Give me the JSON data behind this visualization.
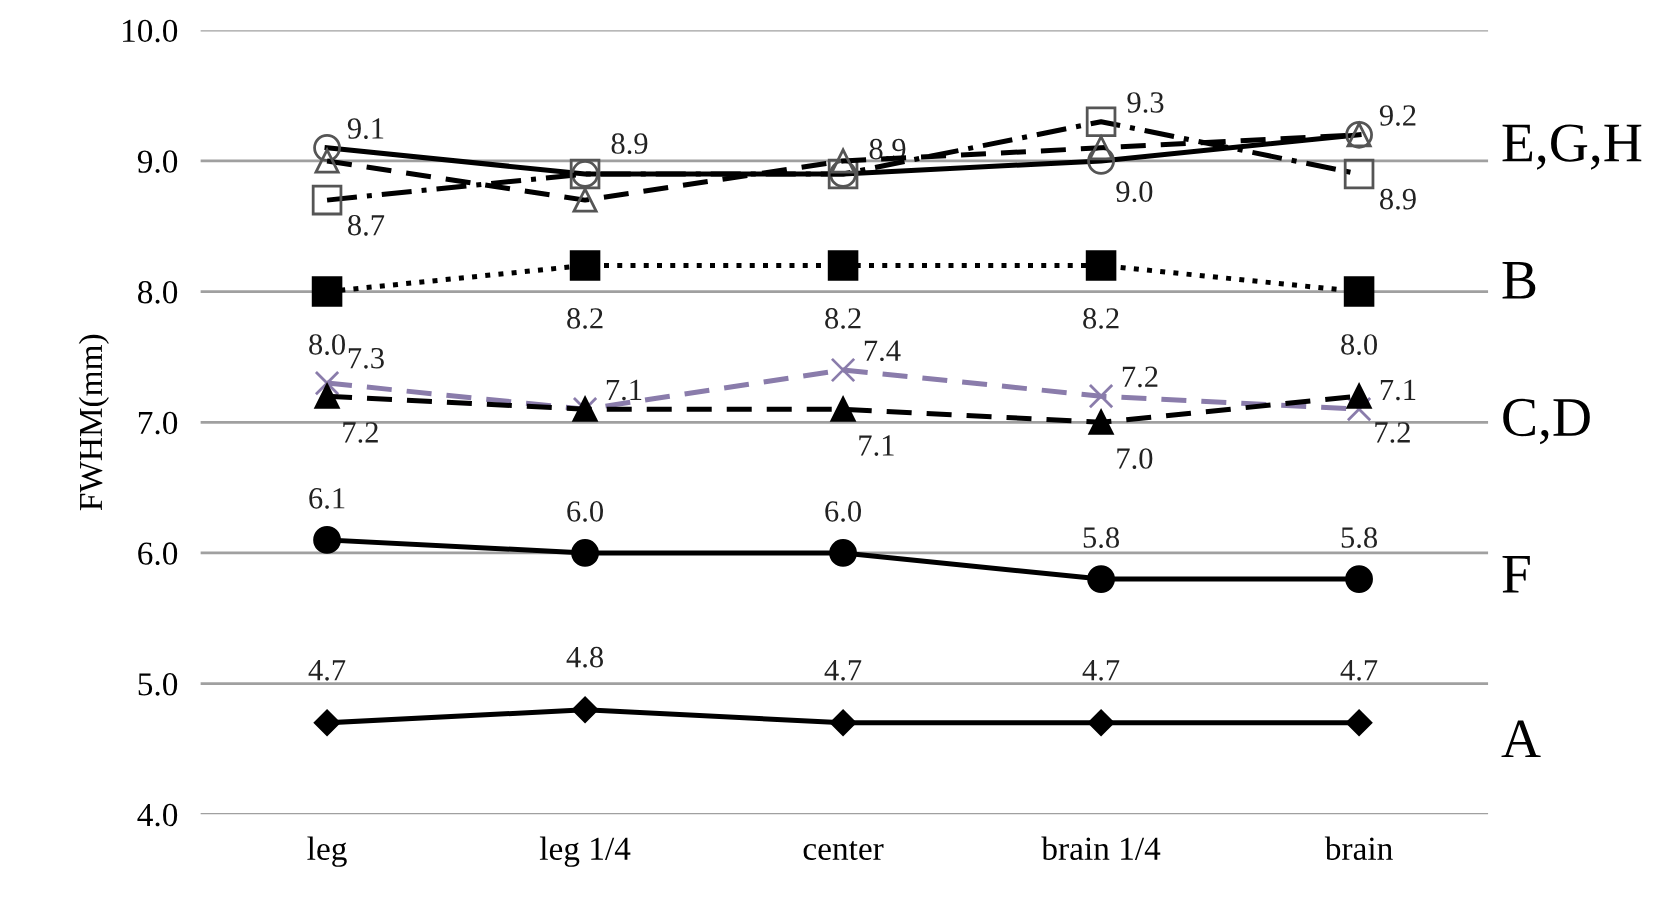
{
  "chart_data": {
    "type": "line",
    "ylabel": "FWHM(mm)",
    "categories": [
      "leg",
      "leg 1/4",
      "center",
      "brain 1/4",
      "brain"
    ],
    "ylim": [
      4.0,
      10.0
    ],
    "yticks": [
      {
        "value": 4.0,
        "label": "4.0"
      },
      {
        "value": 5.0,
        "label": "5.0"
      },
      {
        "value": 6.0,
        "label": "6.0"
      },
      {
        "value": 7.0,
        "label": "7.0"
      },
      {
        "value": 8.0,
        "label": "8.0"
      },
      {
        "value": 9.0,
        "label": "9.0"
      },
      {
        "value": 10.0,
        "label": "10.0"
      }
    ],
    "grid": "y",
    "legend": false,
    "series": [
      {
        "color": "#000000",
        "marker": "circle",
        "line_style": "solid",
        "values": [
          9.1,
          8.9,
          8.9,
          9.0,
          9.2
        ],
        "value_labels": [
          "9.1",
          null,
          null,
          "9.0",
          "9.2"
        ]
      },
      {
        "color": "#000000",
        "marker": "square",
        "line_style": "dashdot",
        "values": [
          8.7,
          8.9,
          8.9,
          9.3,
          8.9
        ],
        "value_labels": [
          "8.7",
          "8.9",
          "8.9",
          "9.3",
          "8.9"
        ]
      },
      {
        "color": "#000000",
        "marker": "triangle",
        "line_style": "dashed",
        "values": [
          9.0,
          8.7,
          9.0,
          9.1,
          9.2
        ]
      },
      {
        "color": "#000000",
        "marker": "square",
        "line_style": "dotted",
        "values": [
          8.0,
          8.2,
          8.2,
          8.2,
          8.0
        ],
        "value_labels": [
          "8.0",
          "8.2",
          "8.2",
          "8.2",
          "8.0"
        ]
      },
      {
        "color": "#8a7cab",
        "marker": "cross",
        "line_style": "dashed",
        "values": [
          7.3,
          7.1,
          7.4,
          7.2,
          7.1
        ],
        "value_labels": [
          "7.3",
          "7.1",
          "7.4",
          "7.2",
          "7.1"
        ]
      },
      {
        "color": "#000000",
        "marker": "triangle",
        "line_style": "dashed",
        "values": [
          7.2,
          7.1,
          7.1,
          7.0,
          7.2
        ],
        "value_labels": [
          "7.2",
          null,
          "7.1",
          "7.0",
          "7.2"
        ]
      },
      {
        "color": "#000000",
        "marker": "circle",
        "line_style": "solid",
        "values": [
          6.1,
          6.0,
          6.0,
          5.8,
          5.8
        ],
        "value_labels": [
          "6.1",
          "6.0",
          "6.0",
          "5.8",
          "5.8"
        ]
      },
      {
        "color": "#000000",
        "marker": "diamond",
        "line_style": "solid",
        "values": [
          4.7,
          4.8,
          4.7,
          4.7,
          4.7
        ],
        "value_labels": [
          "4.7",
          "4.8",
          "4.7",
          "4.7",
          "4.7"
        ]
      }
    ],
    "annotations": [
      "E,G,H",
      "B",
      "C,D",
      "F",
      "A"
    ]
  }
}
